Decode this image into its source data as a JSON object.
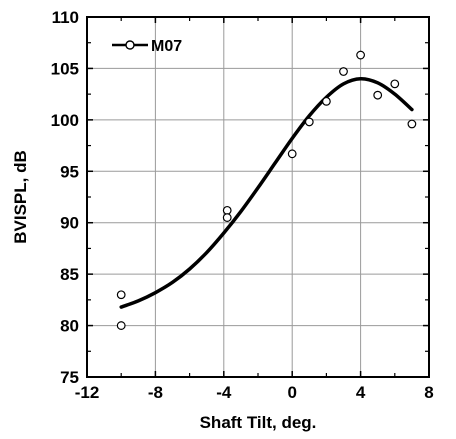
{
  "chart_data": {
    "type": "scatter",
    "xlabel": "Shaft Tilt, deg.",
    "ylabel": "BVISPL, dB",
    "xlim": [
      -12,
      8
    ],
    "ylim": [
      75,
      110
    ],
    "xticks": [
      -12,
      -8,
      -4,
      0,
      4,
      8
    ],
    "yticks": [
      75,
      80,
      85,
      90,
      95,
      100,
      105,
      110
    ],
    "grid": true,
    "legend_position": "top-left",
    "series": [
      {
        "name": "M07",
        "marker": "open-circle",
        "fit_line": true,
        "points": [
          {
            "x": -10,
            "y": 83.0
          },
          {
            "x": -10,
            "y": 80.0
          },
          {
            "x": -3.8,
            "y": 91.2
          },
          {
            "x": -3.8,
            "y": 90.5
          },
          {
            "x": 0,
            "y": 96.7
          },
          {
            "x": 1,
            "y": 99.8
          },
          {
            "x": 2,
            "y": 101.8
          },
          {
            "x": 3,
            "y": 104.7
          },
          {
            "x": 4,
            "y": 106.3
          },
          {
            "x": 5,
            "y": 102.4
          },
          {
            "x": 6,
            "y": 103.5
          },
          {
            "x": 7,
            "y": 99.6
          }
        ],
        "fit": [
          {
            "x": -10,
            "y": 81.8
          },
          {
            "x": -9,
            "y": 82.4
          },
          {
            "x": -8,
            "y": 83.2
          },
          {
            "x": -7,
            "y": 84.2
          },
          {
            "x": -6,
            "y": 85.5
          },
          {
            "x": -5,
            "y": 87.1
          },
          {
            "x": -4,
            "y": 89.0
          },
          {
            "x": -3,
            "y": 91.1
          },
          {
            "x": -2,
            "y": 93.4
          },
          {
            "x": -1,
            "y": 95.8
          },
          {
            "x": 0,
            "y": 98.2
          },
          {
            "x": 1,
            "y": 100.4
          },
          {
            "x": 2,
            "y": 102.2
          },
          {
            "x": 3,
            "y": 103.5
          },
          {
            "x": 4,
            "y": 104.0
          },
          {
            "x": 5,
            "y": 103.6
          },
          {
            "x": 6,
            "y": 102.5
          },
          {
            "x": 7,
            "y": 101.0
          }
        ]
      }
    ]
  },
  "colors": {
    "axis": "#000000",
    "grid": "#9a9a9a",
    "series": "#000000",
    "marker_fill": "#ffffff"
  }
}
